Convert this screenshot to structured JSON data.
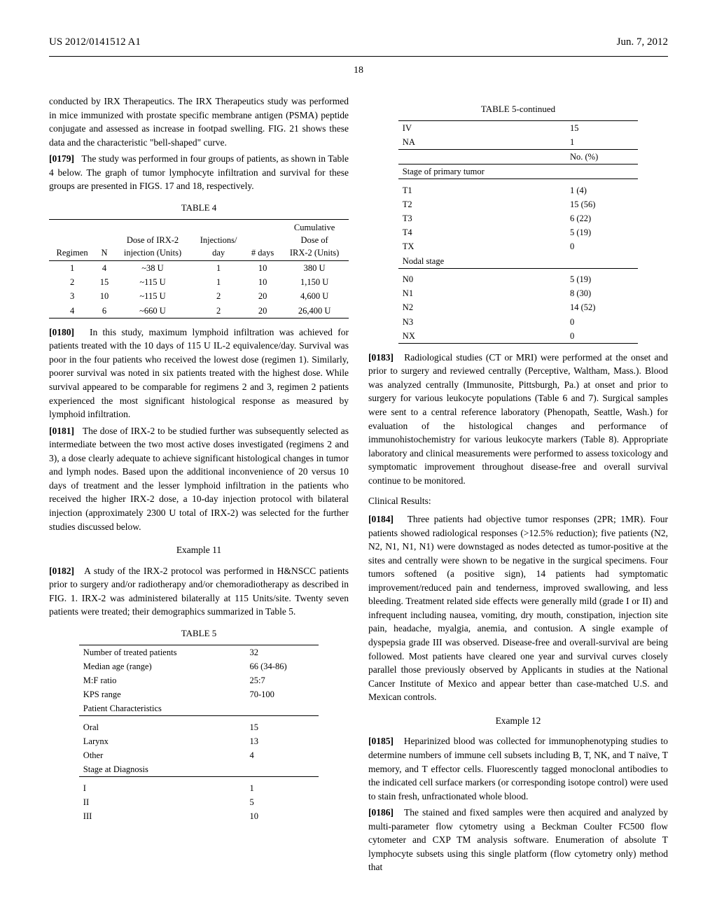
{
  "header": {
    "pub_number": "US 2012/0141512 A1",
    "pub_date": "Jun. 7, 2012",
    "page_number": "18"
  },
  "col1": {
    "intro_cont": "conducted by IRX Therapeutics. The IRX Therapeutics study was performed in mice immunized with prostate specific membrane antigen (PSMA) peptide conjugate and assessed as increase in footpad swelling. FIG. 21 shows these data and the characteristic \"bell-shaped\" curve.",
    "p0179_num": "[0179]",
    "p0179": "The study was performed in four groups of patients, as shown in Table 4 below. The graph of tumor lymphocyte infiltration and survival for these groups are presented in FIGS. 17 and 18, respectively.",
    "table4": {
      "caption": "TABLE 4",
      "headers": [
        "Regimen",
        "N",
        "Dose of IRX-2\ninjection (Units)",
        "Injections/\nday",
        "# days",
        "Cumulative\nDose of\nIRX-2 (Units)"
      ],
      "rows": [
        [
          "1",
          "4",
          "~38 U",
          "1",
          "10",
          "380 U"
        ],
        [
          "2",
          "15",
          "~115 U",
          "1",
          "10",
          "1,150 U"
        ],
        [
          "3",
          "10",
          "~115 U",
          "2",
          "20",
          "4,600 U"
        ],
        [
          "4",
          "6",
          "~660 U",
          "2",
          "20",
          "26,400 U"
        ]
      ]
    },
    "p0180_num": "[0180]",
    "p0180": "In this study, maximum lymphoid infiltration was achieved for patients treated with the 10 days of 115 U IL-2 equivalence/day. Survival was poor in the four patients who received the lowest dose (regimen 1). Similarly, poorer survival was noted in six patients treated with the highest dose. While survival appeared to be comparable for regimens 2 and 3, regimen 2 patients experienced the most significant histological response as measured by lymphoid infiltration.",
    "p0181_num": "[0181]",
    "p0181": "The dose of IRX-2 to be studied further was subsequently selected as intermediate between the two most active doses investigated (regimens 2 and 3), a dose clearly adequate to achieve significant histological changes in tumor and lymph nodes. Based upon the additional inconvenience of 20 versus 10 days of treatment and the lesser lymphoid infiltration in the patients who received the higher IRX-2 dose, a 10-day injection protocol with bilateral injection (approximately 2300 U total of IRX-2) was selected for the further studies discussed below.",
    "ex11_heading": "Example 11",
    "p0182_num": "[0182]",
    "p0182": "A study of the IRX-2 protocol was performed in H&NSCC patients prior to surgery and/or radiotherapy and/or chemoradiotherapy as described in FIG. 1. IRX-2 was administered bilaterally at 115 Units/site. Twenty seven patients were treated; their demographics summarized in Table 5.",
    "table5": {
      "caption": "TABLE 5",
      "rows1": [
        [
          "Number of treated patients",
          "32"
        ],
        [
          "Median age (range)",
          "66 (34-86)"
        ],
        [
          "M:F ratio",
          "25:7"
        ],
        [
          "KPS range",
          "70-100"
        ]
      ],
      "sec1_label": "Patient Characteristics",
      "rows2": [
        [
          "Oral",
          "15"
        ],
        [
          "Larynx",
          "13"
        ],
        [
          "Other",
          "4"
        ]
      ],
      "sec2_label": "Stage at Diagnosis",
      "rows3": [
        [
          "I",
          "1"
        ],
        [
          "II",
          "5"
        ],
        [
          "III",
          "10"
        ]
      ]
    }
  },
  "col2": {
    "table5cont": {
      "caption": "TABLE 5-continued",
      "rows_top": [
        [
          "IV",
          "15"
        ],
        [
          "NA",
          "1"
        ]
      ],
      "header2": "No. (%)",
      "sec_primary": "Stage of primary tumor",
      "rows_primary": [
        [
          "T1",
          "1 (4)"
        ],
        [
          "T2",
          "15 (56)"
        ],
        [
          "T3",
          "6 (22)"
        ],
        [
          "T4",
          "5 (19)"
        ],
        [
          "TX",
          "0"
        ]
      ],
      "sec_nodal": "Nodal stage",
      "rows_nodal": [
        [
          "N0",
          "5 (19)"
        ],
        [
          "N1",
          "8 (30)"
        ],
        [
          "N2",
          "14 (52)"
        ],
        [
          "N3",
          "0"
        ],
        [
          "NX",
          "0"
        ]
      ]
    },
    "p0183_num": "[0183]",
    "p0183": "Radiological studies (CT or MRI) were performed at the onset and prior to surgery and reviewed centrally (Perceptive, Waltham, Mass.). Blood was analyzed centrally (Immunosite, Pittsburgh, Pa.) at onset and prior to surgery for various leukocyte populations (Table 6 and 7). Surgical samples were sent to a central reference laboratory (Phenopath, Seattle, Wash.) for evaluation of the histological changes and performance of immunohistochemistry for various leukocyte markers (Table 8). Appropriate laboratory and clinical measurements were performed to assess toxicology and symptomatic improvement throughout disease-free and overall survival continue to be monitored.",
    "clinical_heading": "Clinical Results:",
    "p0184_num": "[0184]",
    "p0184": "Three patients had objective tumor responses (2PR; 1MR). Four patients showed radiological responses (>12.5% reduction); five patients (N2, N2, N1, N1, N1) were downstaged as nodes detected as tumor-positive at the sites and centrally were shown to be negative in the surgical specimens. Four tumors softened (a positive sign), 14 patients had symptomatic improvement/reduced pain and tenderness, improved swallowing, and less bleeding. Treatment related side effects were generally mild (grade I or II) and infrequent including nausea, vomiting, dry mouth, constipation, injection site pain, headache, myalgia, anemia, and contusion. A single example of dyspepsia grade III was observed. Disease-free and overall-survival are being followed. Most patients have cleared one year and survival curves closely parallel those previously observed by Applicants in studies at the National Cancer Institute of Mexico and appear better than case-matched U.S. and Mexican controls.",
    "ex12_heading": "Example 12",
    "p0185_num": "[0185]",
    "p0185": "Heparinized blood was collected for immunophenotyping studies to determine numbers of immune cell subsets including B, T, NK, and T naïve, T memory, and T effector cells. Fluorescently tagged monoclonal antibodies to the indicated cell surface markers (or corresponding isotope control) were used to stain fresh, unfractionated whole blood.",
    "p0186_num": "[0186]",
    "p0186": "The stained and fixed samples were then acquired and analyzed by multi-parameter flow cytometry using a Beckman Coulter FC500 flow cytometer and CXP TM analysis software. Enumeration of absolute T lymphocyte subsets using this single platform (flow cytometry only) method that"
  }
}
